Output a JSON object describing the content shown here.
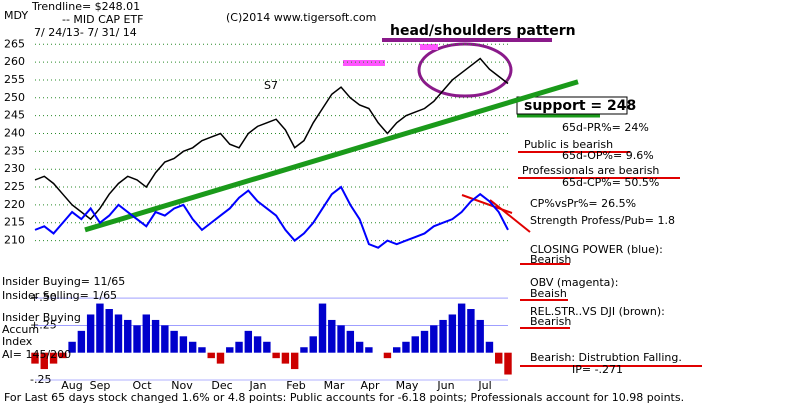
{
  "chart_data": {
    "type": "line",
    "symbol": "MDY",
    "title": "Trendline= $248.01",
    "subtitle": "-- MID CAP ETF",
    "copyright": "(C)2014 www.tigersoft.com",
    "date_range": "7/ 24/13- 7/ 31/ 14",
    "ylim": [
      204,
      276
    ],
    "yticks": [
      210,
      215,
      220,
      225,
      230,
      235,
      240,
      245,
      250,
      255,
      260,
      265
    ],
    "grid": true,
    "months": [
      "Aug",
      "Sep",
      "Oct",
      "Nov",
      "Dec",
      "Jan",
      "Feb",
      "Mar",
      "Apr",
      "May",
      "Jun",
      "Jul"
    ],
    "series": [
      {
        "color": "#000000",
        "values": [
          227,
          228,
          226,
          223,
          220,
          218,
          216,
          219,
          223,
          226,
          228,
          227,
          225,
          229,
          232,
          233,
          235,
          236,
          238,
          239,
          240,
          237,
          236,
          240,
          242,
          243,
          244,
          241,
          236,
          238,
          243,
          247,
          251,
          253,
          250,
          248,
          247,
          243,
          240,
          243,
          245,
          246,
          247,
          249,
          252,
          255,
          257,
          259,
          261,
          258,
          256,
          254
        ]
      },
      {
        "color": "#0000ff",
        "values": [
          213,
          214,
          212,
          215,
          218,
          216,
          219,
          215,
          217,
          220,
          218,
          216,
          214,
          218,
          217,
          219,
          220,
          216,
          213,
          215,
          217,
          219,
          222,
          224,
          221,
          219,
          217,
          213,
          210,
          212,
          215,
          219,
          223,
          225,
          220,
          216,
          209,
          208,
          210,
          209,
          210,
          211,
          212,
          214,
          215,
          216,
          218,
          221,
          223,
          221,
          218,
          213
        ]
      }
    ],
    "trendline": {
      "color": "#1a9a1a",
      "values": [
        213,
        254.5
      ]
    },
    "accumulation": {
      "color_pos": "#0000cc",
      "color_neg": "#cc0000",
      "ylim": [
        -0.36,
        0.62
      ],
      "yticks": [
        {
          "value": 0.5,
          "label": "+.50"
        },
        {
          "value": 0.25,
          "label": "+.25"
        },
        {
          "value": -0.25,
          "label": "-.25"
        }
      ],
      "values": [
        -0.1,
        -0.15,
        -0.1,
        -0.05,
        0.1,
        0.2,
        0.35,
        0.45,
        0.4,
        0.35,
        0.3,
        0.25,
        0.35,
        0.3,
        0.25,
        0.2,
        0.15,
        0.1,
        0.05,
        -0.05,
        -0.1,
        0.05,
        0.1,
        0.2,
        0.15,
        0.1,
        -0.05,
        -0.1,
        -0.15,
        0.05,
        0.15,
        0.45,
        0.3,
        0.25,
        0.2,
        0.1,
        0.05,
        0.0,
        -0.05,
        0.05,
        0.1,
        0.15,
        0.2,
        0.25,
        0.3,
        0.35,
        0.45,
        0.4,
        0.3,
        0.1,
        -0.1,
        -0.2
      ]
    },
    "annotations": [
      "head/shoulders pattern",
      "support = 248",
      "65d-PR%= 24%",
      "Public is bearish",
      "65d-OP%= 9.6%",
      "Professionals are bearish",
      "65d-CP%= 50.5%",
      "CP%vsPr%= 26.5%",
      "Strength Profess/Pub= 1.8",
      "CLOSING POWER (blue):",
      "Bearish",
      "OBV (magenta):",
      "Beaish",
      "REL.STR..VS DJI (brown):",
      "Bearish",
      "Bearish: Distrubtion Falling.",
      "IP= -.271",
      "Insider Buying= 11/65",
      "Insider Selling= 1/65",
      "Insider Buying",
      "Accum",
      "Index",
      "AI= 145/200",
      "S7"
    ],
    "footer": "For Last 65 days stock changed 1.6% or 4.8 points: Public accounts for -6.18 points; Professionals account for 10.98 points."
  }
}
